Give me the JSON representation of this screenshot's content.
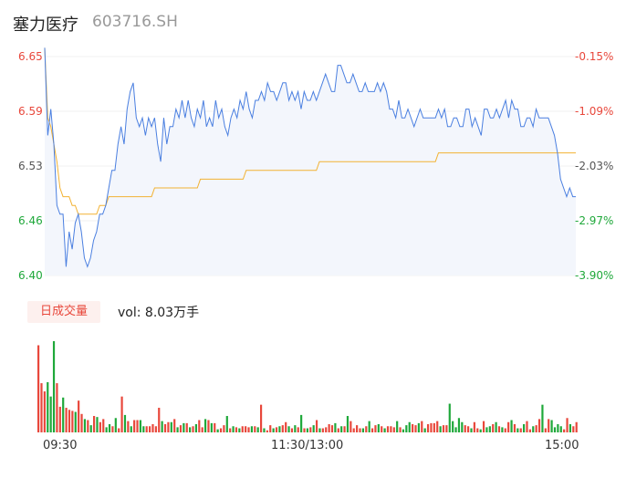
{
  "header": {
    "name": "塞力医疗",
    "code": "603716.SH"
  },
  "price_axis": {
    "left_ticks": [
      "6.65",
      "6.59",
      "6.53",
      "6.46",
      "6.40"
    ],
    "right_ticks": [
      "-0.15%",
      "-1.09%",
      "-2.03%",
      "-2.97%",
      "-3.90%"
    ]
  },
  "volume_panel": {
    "tab_label": "日成交量",
    "vol_text": "vol: 8.03万手"
  },
  "time_axis": {
    "labels": [
      "09:30",
      "11:30/13:00",
      "15:00"
    ]
  },
  "colors": {
    "price_line": "#4a7fe0",
    "avg_line": "#f2b233",
    "area_fill": "#f3f6fc",
    "up": "#e8473b",
    "down": "#1fa83a",
    "up_tick": "#e8473b",
    "down_tick": "#1fa83a"
  },
  "chart_data": [
    {
      "type": "line",
      "x_range": [
        "09:30",
        "15:00"
      ],
      "ylim": [
        6.4,
        6.65
      ],
      "series": [
        {
          "values": [
            6.66,
            6.56,
            6.59,
            6.55,
            6.48,
            6.47,
            6.47,
            6.41,
            6.45,
            6.43,
            6.46,
            6.47,
            6.45,
            6.42,
            6.41,
            6.42,
            6.44,
            6.45,
            6.47,
            6.47,
            6.48,
            6.5,
            6.52,
            6.52,
            6.55,
            6.57,
            6.55,
            6.59,
            6.61,
            6.62,
            6.58,
            6.57,
            6.58,
            6.56,
            6.58,
            6.57,
            6.58,
            6.55,
            6.53,
            6.58,
            6.55,
            6.57,
            6.57,
            6.59,
            6.58,
            6.6,
            6.58,
            6.6,
            6.58,
            6.57,
            6.59,
            6.58,
            6.6,
            6.57,
            6.58,
            6.57,
            6.6,
            6.58,
            6.59,
            6.57,
            6.56,
            6.58,
            6.59,
            6.58,
            6.6,
            6.59,
            6.61,
            6.59,
            6.58,
            6.6,
            6.6,
            6.61,
            6.6,
            6.62,
            6.61,
            6.61,
            6.6,
            6.61,
            6.62,
            6.62,
            6.6,
            6.61,
            6.6,
            6.61,
            6.59,
            6.61,
            6.6,
            6.6,
            6.61,
            6.6,
            6.61,
            6.62,
            6.63,
            6.62,
            6.61,
            6.61,
            6.64,
            6.64,
            6.63,
            6.62,
            6.62,
            6.63,
            6.62,
            6.61,
            6.61,
            6.62,
            6.61,
            6.61,
            6.61,
            6.62,
            6.61,
            6.62,
            6.61,
            6.59,
            6.59,
            6.58,
            6.6,
            6.58,
            6.58,
            6.59,
            6.58,
            6.57,
            6.58,
            6.59,
            6.58,
            6.58,
            6.58,
            6.58,
            6.58,
            6.59,
            6.58,
            6.59,
            6.57,
            6.57,
            6.58,
            6.58,
            6.57,
            6.57,
            6.59,
            6.59,
            6.57,
            6.58,
            6.57,
            6.56,
            6.59,
            6.59,
            6.58,
            6.58,
            6.59,
            6.58,
            6.59,
            6.6,
            6.58,
            6.6,
            6.59,
            6.59,
            6.57,
            6.57,
            6.58,
            6.58,
            6.57,
            6.59,
            6.58,
            6.58,
            6.58,
            6.58,
            6.57,
            6.56,
            6.54,
            6.51,
            6.5,
            6.49,
            6.5,
            6.49,
            6.49
          ],
          "color": "#4a7fe0"
        },
        {
          "values": [
            6.66,
            6.58,
            6.57,
            6.55,
            6.53,
            6.5,
            6.49,
            6.49,
            6.49,
            6.48,
            6.48,
            6.47,
            6.47,
            6.47,
            6.47,
            6.47,
            6.47,
            6.47,
            6.48,
            6.48,
            6.48,
            6.49,
            6.49,
            6.49,
            6.49,
            6.49,
            6.49,
            6.49,
            6.49,
            6.49,
            6.49,
            6.49,
            6.49,
            6.49,
            6.49,
            6.49,
            6.5,
            6.5,
            6.5,
            6.5,
            6.5,
            6.5,
            6.5,
            6.5,
            6.5,
            6.5,
            6.5,
            6.5,
            6.5,
            6.5,
            6.5,
            6.51,
            6.51,
            6.51,
            6.51,
            6.51,
            6.51,
            6.51,
            6.51,
            6.51,
            6.51,
            6.51,
            6.51,
            6.51,
            6.51,
            6.51,
            6.52,
            6.52,
            6.52,
            6.52,
            6.52,
            6.52,
            6.52,
            6.52,
            6.52,
            6.52,
            6.52,
            6.52,
            6.52,
            6.52,
            6.52,
            6.52,
            6.52,
            6.52,
            6.52,
            6.52,
            6.52,
            6.52,
            6.52,
            6.52,
            6.53,
            6.53,
            6.53,
            6.53,
            6.53,
            6.53,
            6.53,
            6.53,
            6.53,
            6.53,
            6.53,
            6.53,
            6.53,
            6.53,
            6.53,
            6.53,
            6.53,
            6.53,
            6.53,
            6.53,
            6.53,
            6.53,
            6.53,
            6.53,
            6.53,
            6.53,
            6.53,
            6.53,
            6.53,
            6.53,
            6.53,
            6.53,
            6.53,
            6.53,
            6.53,
            6.53,
            6.53,
            6.53,
            6.53,
            6.54,
            6.54,
            6.54,
            6.54,
            6.54,
            6.54,
            6.54,
            6.54,
            6.54,
            6.54,
            6.54,
            6.54,
            6.54,
            6.54,
            6.54,
            6.54,
            6.54,
            6.54,
            6.54,
            6.54,
            6.54,
            6.54,
            6.54,
            6.54,
            6.54,
            6.54,
            6.54,
            6.54,
            6.54,
            6.54,
            6.54,
            6.54,
            6.54,
            6.54,
            6.54,
            6.54,
            6.54,
            6.54,
            6.54,
            6.54,
            6.54,
            6.54,
            6.54,
            6.54,
            6.54,
            6.54
          ],
          "color": "#f2b233"
        }
      ]
    },
    {
      "type": "bar",
      "x_range": [
        "09:30",
        "15:00"
      ],
      "series": [
        {
          "values": [
            85,
            48,
            40,
            49,
            35,
            89,
            48,
            25,
            34,
            24,
            22,
            21,
            20,
            31,
            18,
            13,
            12,
            7,
            16,
            15,
            10,
            13,
            5,
            8,
            6,
            14,
            4,
            35,
            17,
            11,
            6,
            12,
            12,
            12,
            6,
            6,
            6,
            8,
            6,
            24,
            11,
            8,
            10,
            10,
            13,
            5,
            7,
            9,
            9,
            5,
            6,
            8,
            12,
            5,
            13,
            12,
            9,
            9,
            3,
            4,
            7,
            16,
            4,
            6,
            5,
            4,
            6,
            6,
            5,
            6,
            6,
            5,
            27,
            4,
            2,
            7,
            4,
            5,
            6,
            7,
            10,
            6,
            4,
            7,
            5,
            17,
            4,
            4,
            5,
            7,
            12,
            4,
            4,
            5,
            8,
            7,
            9,
            4,
            6,
            6,
            16,
            11,
            4,
            7,
            4,
            4,
            6,
            11,
            4,
            7,
            8,
            6,
            4,
            6,
            6,
            5,
            11,
            5,
            3,
            7,
            10,
            8,
            7,
            9,
            11,
            4,
            8,
            9,
            9,
            11,
            6,
            7,
            7,
            28,
            11,
            5,
            14,
            10,
            7,
            6,
            4,
            10,
            4,
            3,
            11,
            5,
            6,
            8,
            10,
            6,
            5,
            4,
            10,
            12,
            8,
            4,
            4,
            8,
            11,
            3,
            6,
            7,
            13,
            27,
            4,
            13,
            12,
            5,
            8,
            6,
            3,
            14,
            8,
            6,
            10
          ],
          "colors": "rrrgggrrgrrrgrrgrgrgrrggrgrrgrgrrggrrrrrgrrgrgrgrgrgrrgrgrgrrgrgrgrrrgrgrgrrgrgrrgrgrgrgrgrgrrrrgrgrgrrrrgrgrrgrgrrrgrgggrrgrgrrrrgrrgggggrrgrrgrggrgrgrrgrgrgrrgrrgrrggggrrgrrgrg"
        }
      ]
    }
  ]
}
